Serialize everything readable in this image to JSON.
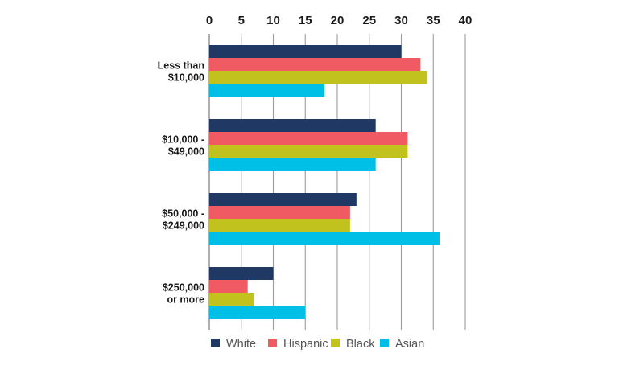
{
  "chart_data": {
    "type": "bar",
    "orientation": "horizontal",
    "categories": [
      "Less than\n$10,000",
      "$10,000 -\n$49,000",
      "$50,000 -\n$249,000",
      "$250,000\nor more"
    ],
    "series": [
      {
        "name": "White",
        "color": "#1f3864",
        "values": [
          30,
          26,
          23,
          10
        ]
      },
      {
        "name": "Hispanic",
        "color": "#f05a63",
        "values": [
          33,
          31,
          22,
          6
        ]
      },
      {
        "name": "Black",
        "color": "#c2c21f",
        "values": [
          34,
          31,
          22,
          7
        ]
      },
      {
        "name": "Asian",
        "color": "#00bfe6",
        "values": [
          18,
          26,
          36,
          15
        ]
      }
    ],
    "xticks": [
      0,
      5,
      10,
      15,
      20,
      25,
      30,
      35,
      40
    ],
    "xlim": [
      0,
      40
    ],
    "xaxis_position": "top",
    "grid": "vertical",
    "legend_position": "bottom",
    "title": "",
    "xlabel": "",
    "ylabel": ""
  }
}
